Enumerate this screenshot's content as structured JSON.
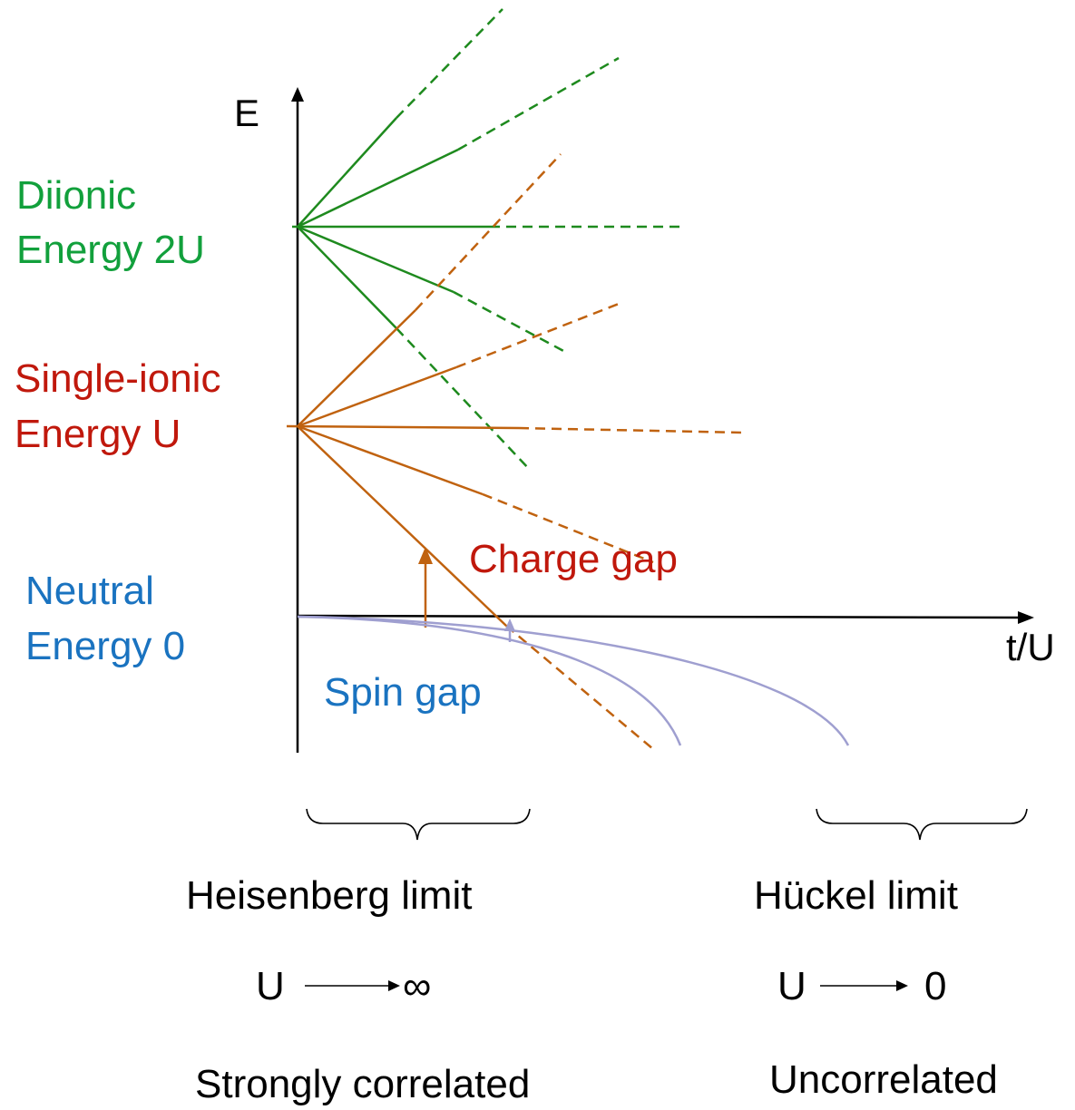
{
  "colors": {
    "diionic": "#12a03c",
    "single_ionic": "#c0180c",
    "neutral": "#1a73c0",
    "orange_lines": "#c0620f",
    "green_lines": "#1e8a1e",
    "curves": "#9f9fd0",
    "axes": "#000000"
  },
  "axes": {
    "y_label": "E",
    "x_label": "t/U"
  },
  "levels": {
    "diionic": {
      "line1": "Diionic",
      "line2": "Energy 2U"
    },
    "single_ionic": {
      "line1": "Single-ionic",
      "line2": "Energy U"
    },
    "neutral": {
      "line1": "Neutral",
      "line2": "Energy 0"
    }
  },
  "annotations": {
    "charge_gap": "Charge gap",
    "spin_gap": "Spin gap"
  },
  "limits": {
    "heisenberg": {
      "title": "Heisenberg limit",
      "u_symbol": "U",
      "target": "∞",
      "description": "Strongly correlated"
    },
    "huckel": {
      "title": "Hückel limit",
      "u_symbol": "U",
      "target": "0",
      "description": "Uncorrelated"
    }
  }
}
